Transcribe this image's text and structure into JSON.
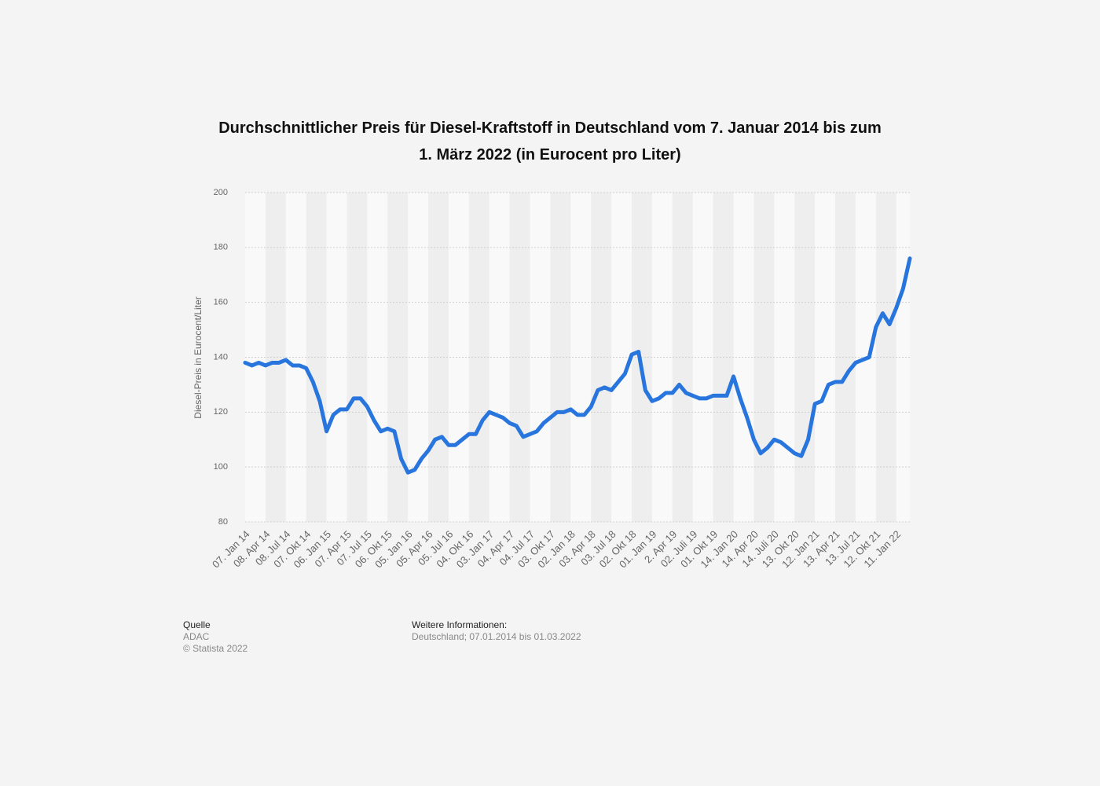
{
  "chart_data": {
    "type": "line",
    "title": "Durchschnittlicher Preis für Diesel-Kraftstoff in Deutschland vom 7. Januar 2014 bis zum 1. März 2022 (in Eurocent pro Liter)",
    "y_label": "Diesel-Preis in Eurocent/Liter",
    "categories": [
      "07. Jan 14",
      null,
      null,
      "08. Apr 14",
      null,
      null,
      "08. Jul 14",
      null,
      null,
      "07. Okt 14",
      null,
      null,
      "06. Jan 15",
      null,
      null,
      "07. Apr 15",
      null,
      null,
      "07. Jul 15",
      null,
      null,
      "06. Okt 15",
      null,
      null,
      "05. Jan 16",
      null,
      null,
      "05. Apr 16",
      null,
      null,
      "05. Jul 16",
      null,
      null,
      "04. Okt 16",
      null,
      null,
      "03. Jan 17",
      null,
      null,
      "04. Apr 17",
      null,
      null,
      "04. Jul 17",
      null,
      null,
      "03. Okt 17",
      null,
      null,
      "02. Jan 18",
      null,
      null,
      "03. Apr 18",
      null,
      null,
      "03. Jul 18",
      null,
      null,
      "02. Okt 18",
      null,
      null,
      "01. Jan 19",
      null,
      null,
      "2. Apr 19",
      null,
      null,
      "02. Juli 19",
      null,
      null,
      "01. Okt 19",
      null,
      null,
      "14. Jan 20",
      null,
      null,
      "14. Apr 20",
      null,
      null,
      "14. Juli 20",
      null,
      null,
      "13. Okt 20",
      null,
      null,
      "12. Jan 21",
      null,
      null,
      "13. Apr 21",
      null,
      null,
      "13. Jul 21",
      null,
      null,
      "12. Okt 21",
      null,
      null,
      "11. Jan 22",
      null,
      null
    ],
    "series": [
      {
        "name": "Diesel-Preis",
        "color": "#2876dd",
        "values": [
          138,
          137,
          138,
          137,
          138,
          138,
          139,
          137,
          137,
          136,
          131,
          124,
          113,
          119,
          121,
          121,
          125,
          125,
          122,
          117,
          113,
          114,
          113,
          103,
          98,
          99,
          103,
          106,
          110,
          111,
          108,
          108,
          110,
          112,
          112,
          117,
          120,
          119,
          118,
          116,
          115,
          111,
          112,
          113,
          116,
          118,
          120,
          120,
          121,
          119,
          119,
          122,
          128,
          129,
          128,
          131,
          134,
          141,
          142,
          128,
          124,
          125,
          127,
          127,
          130,
          127,
          126,
          125,
          125,
          126,
          126,
          126,
          133,
          125,
          118,
          110,
          105,
          107,
          110,
          109,
          107,
          105,
          104,
          110,
          123,
          124,
          130,
          131,
          131,
          135,
          138,
          139,
          140,
          151,
          156,
          152,
          158,
          165,
          176
        ]
      }
    ],
    "ylim": [
      80,
      200
    ],
    "yticks": [
      80,
      100,
      120,
      140,
      160,
      180,
      200
    ],
    "grid": true
  },
  "source": {
    "heading": "Quelle",
    "name": "ADAC",
    "copyright": "© Statista 2022"
  },
  "info": {
    "heading": "Weitere Informationen:",
    "text": "Deutschland; 07.01.2014 bis 01.03.2022"
  }
}
